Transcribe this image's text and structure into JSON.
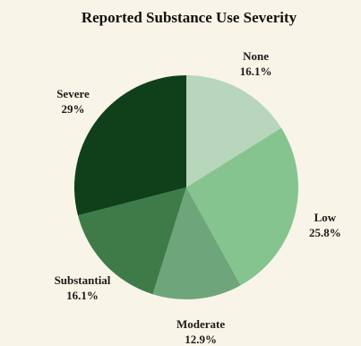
{
  "chart_data": {
    "type": "pie",
    "title": "Reported Substance Use Severity",
    "slices": [
      {
        "label": "None",
        "value": 16.1,
        "value_label": "16.1%",
        "color": "#b7d6bb"
      },
      {
        "label": "Low",
        "value": 25.8,
        "value_label": "25.8%",
        "color": "#85c48f"
      },
      {
        "label": "Moderate",
        "value": 12.9,
        "value_label": "12.9%",
        "color": "#6fa57a"
      },
      {
        "label": "Substantial",
        "value": 16.1,
        "value_label": "16.1%",
        "color": "#3e7b48"
      },
      {
        "label": "Severe",
        "value": 29.0,
        "value_label": "29%",
        "color": "#0f401a"
      }
    ],
    "start_angle": "12 o'clock",
    "direction": "clockwise",
    "legend": "none"
  }
}
